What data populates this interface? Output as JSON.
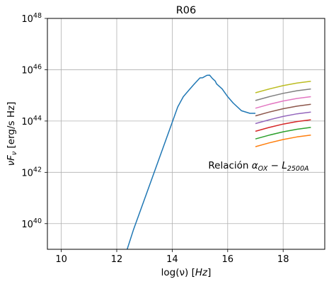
{
  "chart_data": {
    "type": "line",
    "title": "R06",
    "xlabel_main": "log(ν) [",
    "xlabel_unit": "Hz",
    "xlabel_close": "]",
    "ylabel_pre": "ν",
    "ylabel_F": "F",
    "ylabel_sub": "ν",
    "ylabel_post": " [erg/s Hz]",
    "xlim": [
      9.5,
      19.5
    ],
    "ylim_log10": [
      39.0,
      48.0
    ],
    "x_scale": "linear",
    "y_scale": "log",
    "grid": true,
    "x_ticks": [
      {
        "value": 10,
        "label": "10"
      },
      {
        "value": 12,
        "label": "12"
      },
      {
        "value": 14,
        "label": "14"
      },
      {
        "value": 16,
        "label": "16"
      },
      {
        "value": 18,
        "label": "18"
      }
    ],
    "y_ticks": [
      {
        "exp": 40,
        "base": "10",
        "sup": "40"
      },
      {
        "exp": 42,
        "base": "10",
        "sup": "42"
      },
      {
        "exp": 44,
        "base": "10",
        "sup": "44"
      },
      {
        "exp": 46,
        "base": "10",
        "sup": "46"
      },
      {
        "exp": 48,
        "base": "10",
        "sup": "48"
      }
    ],
    "annotation": {
      "prefix": "Relación ",
      "alpha": "α",
      "alpha_sub": "OX",
      "minus": " − ",
      "L": "L",
      "L_sub": "2500A",
      "x": 15.3,
      "log10_y": 42.15
    },
    "series": [
      {
        "color": "#1f77b4",
        "x": [
          12.3,
          12.6,
          13.0,
          13.4,
          13.8,
          14.0,
          14.2,
          14.4,
          14.6,
          14.8,
          15.0,
          15.1,
          15.25,
          15.35,
          15.45,
          15.55,
          15.6,
          15.8,
          16.0,
          16.2,
          16.5,
          16.8,
          16.95,
          17.0
        ],
        "log10_y": [
          38.75,
          39.75,
          40.95,
          42.15,
          43.35,
          43.95,
          44.55,
          44.95,
          45.2,
          45.45,
          45.68,
          45.69,
          45.78,
          45.79,
          45.66,
          45.56,
          45.45,
          45.25,
          44.95,
          44.7,
          44.4,
          44.3,
          44.3,
          44.3
        ]
      },
      {
        "color": "#ff7f0e",
        "x": [
          17.0,
          17.5,
          18.0,
          18.5,
          19.0
        ],
        "log10_y": [
          43.0,
          43.15,
          43.28,
          43.38,
          43.45
        ]
      },
      {
        "color": "#2ca02c",
        "x": [
          17.0,
          17.5,
          18.0,
          18.5,
          19.0
        ],
        "log10_y": [
          43.3,
          43.45,
          43.58,
          43.68,
          43.75
        ]
      },
      {
        "color": "#d62728",
        "x": [
          17.0,
          17.5,
          18.0,
          18.5,
          19.0
        ],
        "log10_y": [
          43.6,
          43.75,
          43.88,
          43.98,
          44.05
        ]
      },
      {
        "color": "#9467bd",
        "x": [
          17.0,
          17.5,
          18.0,
          18.5,
          19.0
        ],
        "log10_y": [
          43.9,
          44.05,
          44.18,
          44.28,
          44.35
        ]
      },
      {
        "color": "#8c564b",
        "x": [
          17.0,
          17.5,
          18.0,
          18.5,
          19.0
        ],
        "log10_y": [
          44.2,
          44.35,
          44.48,
          44.58,
          44.65
        ]
      },
      {
        "color": "#e377c2",
        "x": [
          17.0,
          17.5,
          18.0,
          18.5,
          19.0
        ],
        "log10_y": [
          44.5,
          44.65,
          44.78,
          44.88,
          44.95
        ]
      },
      {
        "color": "#7f7f7f",
        "x": [
          17.0,
          17.5,
          18.0,
          18.5,
          19.0
        ],
        "log10_y": [
          44.8,
          44.95,
          45.08,
          45.18,
          45.25
        ]
      },
      {
        "color": "#bcbd22",
        "x": [
          17.0,
          17.5,
          18.0,
          18.5,
          19.0
        ],
        "log10_y": [
          45.1,
          45.25,
          45.38,
          45.48,
          45.55
        ]
      }
    ]
  }
}
